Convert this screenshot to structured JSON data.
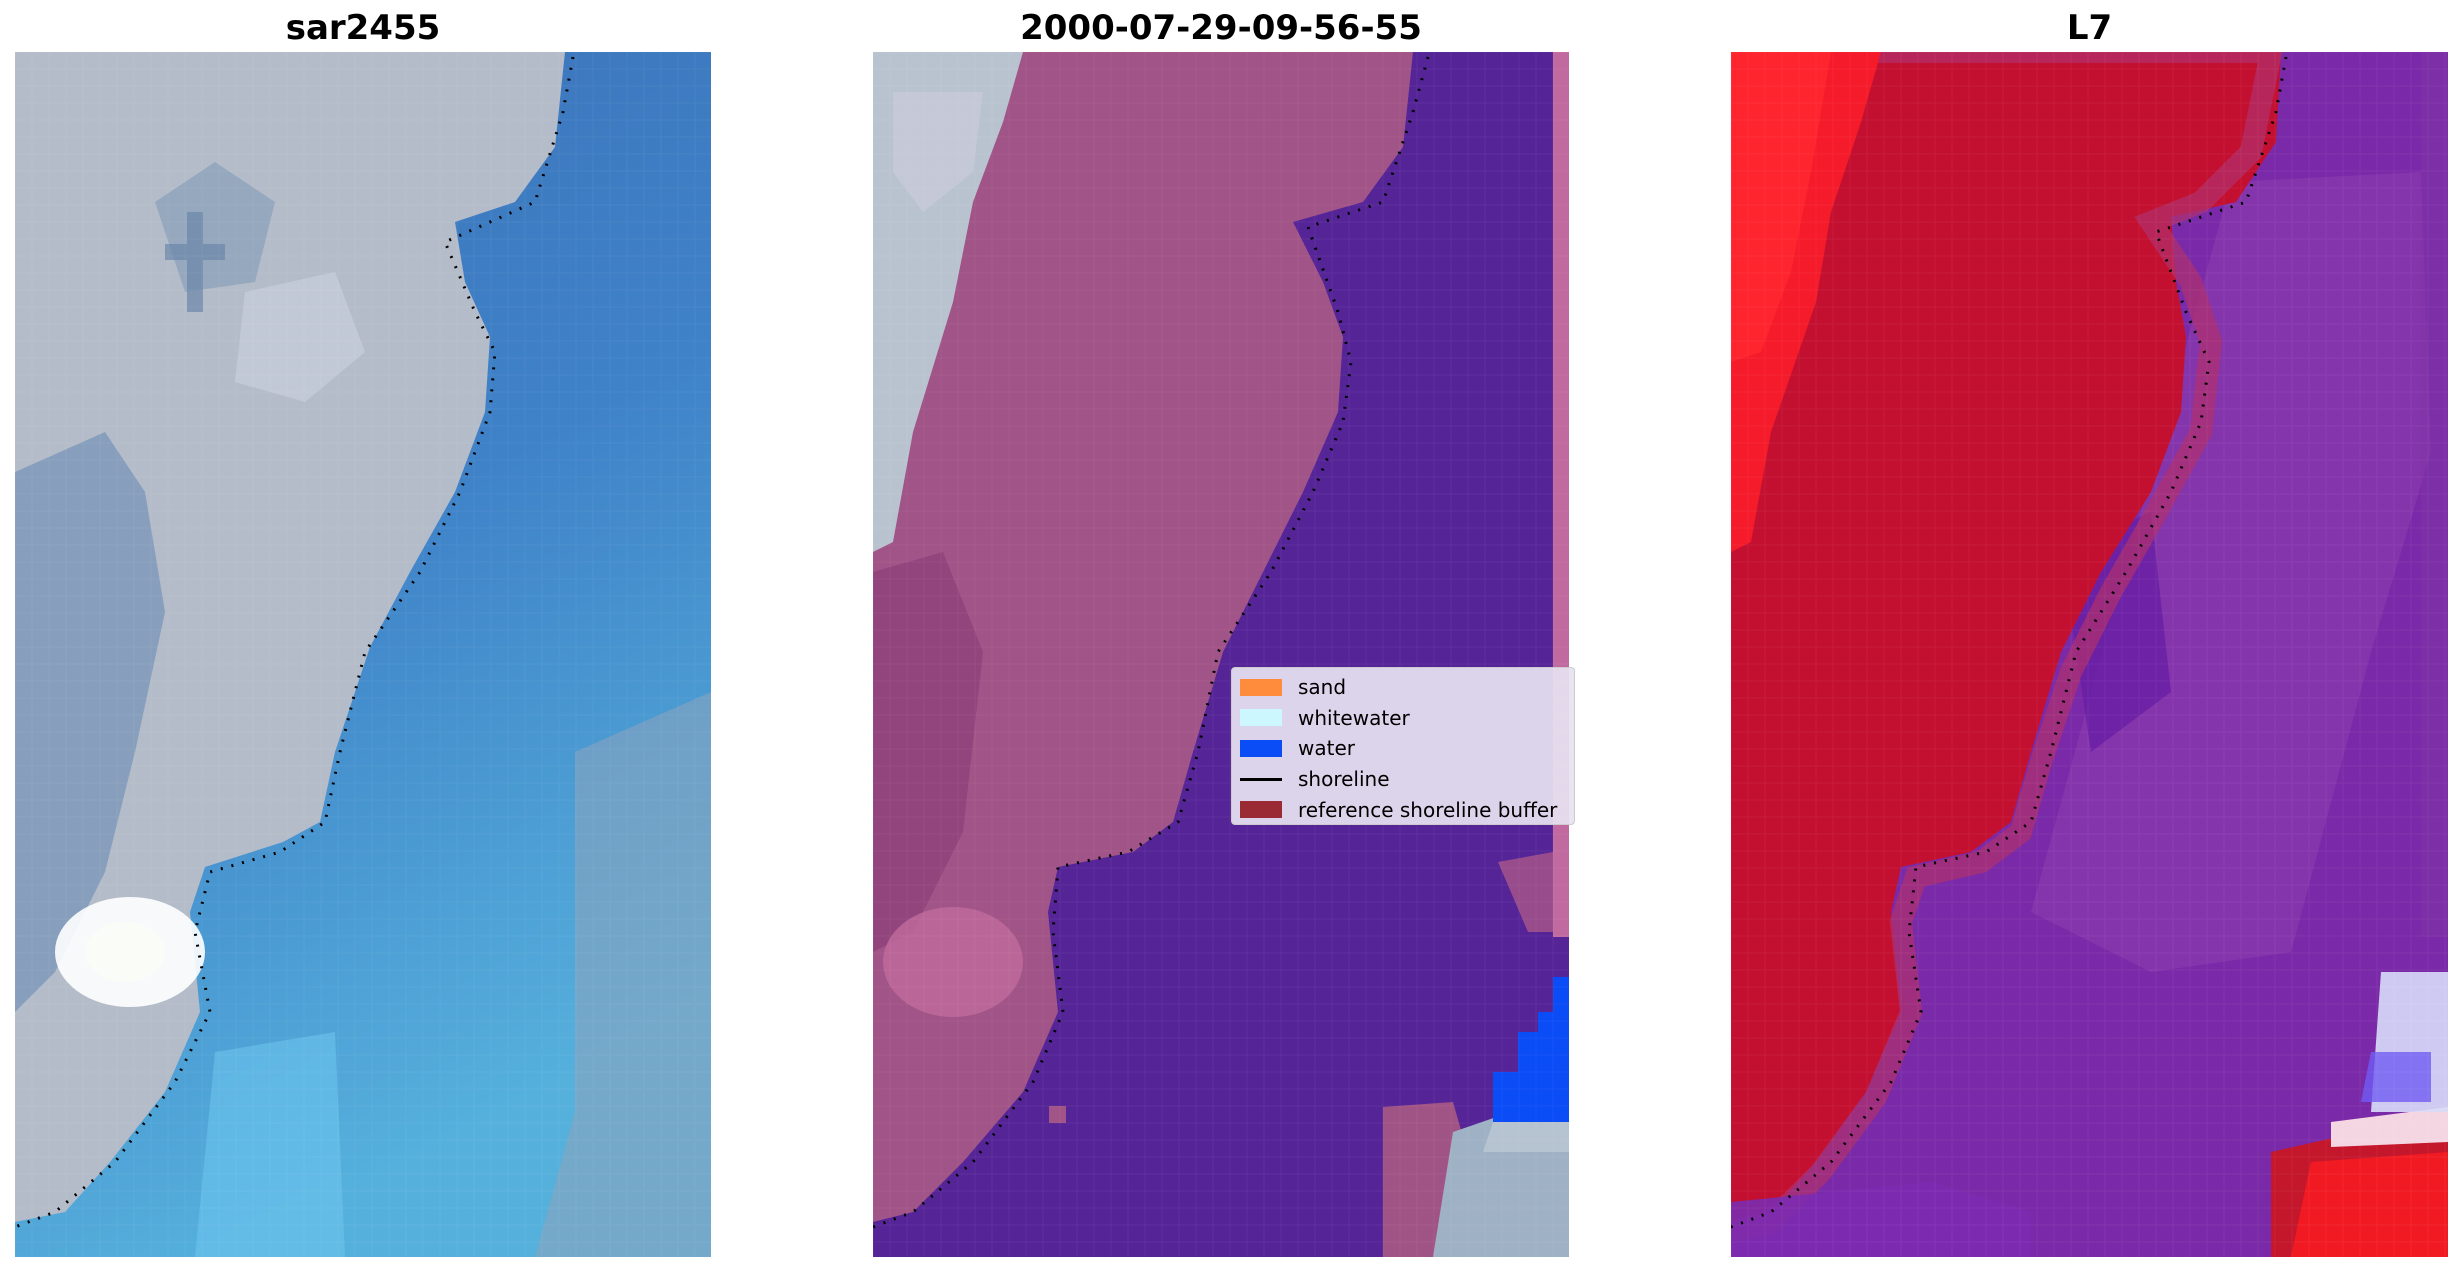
{
  "panels": [
    {
      "title": "sar2455",
      "kind": "rgb"
    },
    {
      "title": "2000-07-29-09-56-55",
      "kind": "classified"
    },
    {
      "title": "L7",
      "kind": "index"
    }
  ],
  "legend": {
    "items": [
      {
        "label": "sand",
        "color": "#ff8c3c",
        "type": "patch"
      },
      {
        "label": "whitewater",
        "color": "#ccf7ff",
        "type": "patch"
      },
      {
        "label": "water",
        "color": "#0a4cf5",
        "type": "patch"
      },
      {
        "label": "shoreline",
        "color": "#000000",
        "type": "line"
      },
      {
        "label": "reference shoreline buffer",
        "color": "#9a2a34",
        "type": "patch"
      }
    ]
  },
  "colors": {
    "sky_blue": "#3f7fc4",
    "land_gray": "#b7bfcc",
    "overlay_purple": "#55239a",
    "overlay_mauve": "#a45488",
    "index_red": "#c8102e",
    "index_violet": "#7a2aa8"
  }
}
